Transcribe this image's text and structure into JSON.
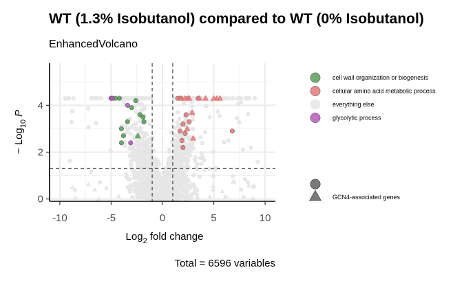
{
  "chart_data": {
    "type": "scatter",
    "title": "WT  (1.3% Isobutanol)  compared to WT (0% Isobutanol)",
    "subtitle": "EnhancedVolcano",
    "xlabel_main": "Log",
    "xlabel_sub": "2",
    "xlabel_rest": " fold change",
    "ylabel_prefix": "− Log",
    "ylabel_sub": "10",
    "ylabel_var": "P",
    "caption": "Total = 6596 variables",
    "xlim": [
      -11,
      11
    ],
    "ylim": [
      -0.1,
      5.8
    ],
    "x_ticks": [
      -10,
      -5,
      0,
      5,
      10
    ],
    "x_tick_labels": [
      "-10",
      "-5",
      "0",
      "5",
      "10"
    ],
    "y_ticks": [
      0,
      2,
      4
    ],
    "y_tick_labels": [
      "0",
      "2",
      "4"
    ],
    "fc_cutoff": 1,
    "p_cutoff_line": 1.3,
    "grid": true,
    "legend_position": "right",
    "legend": [
      {
        "key": "cellwall",
        "label": "cell wall organization or biogenesis",
        "color": "#5a9e5a"
      },
      {
        "key": "aminoacid",
        "label": "cellular amino acid metabolic process",
        "color": "#e07a7a"
      },
      {
        "key": "else",
        "label": "everything else",
        "color": "#e6e6e6"
      },
      {
        "key": "glyco",
        "label": "glycolytic process",
        "color": "#b45ab9"
      }
    ],
    "shape_legend": {
      "label": "GCN4-associated genes"
    },
    "series": [
      {
        "key": "cellwall",
        "shape": "circle",
        "x": [
          -4.9,
          -4.6,
          -4.2,
          -4.0,
          -3.8,
          -3.4,
          -3.0,
          -2.6,
          -2.2,
          -1.9,
          -1.8,
          -4.0
        ],
        "y": [
          4.3,
          4.3,
          4.3,
          3.0,
          2.7,
          3.3,
          3.9,
          4.2,
          3.6,
          3.5,
          3.3,
          2.4
        ]
      },
      {
        "key": "aminoacid",
        "shape": "circle",
        "x": [
          1.5,
          1.8,
          2.0,
          2.2,
          2.5,
          2.3,
          1.7,
          2.0,
          3.5,
          6.8,
          1.9,
          2.6
        ],
        "y": [
          4.3,
          4.3,
          3.2,
          2.8,
          4.3,
          3.6,
          2.9,
          2.2,
          4.3,
          2.9,
          2.5,
          3.3
        ]
      },
      {
        "key": "aminoacid",
        "shape": "triangle",
        "x": [
          1.8,
          2.2,
          2.6,
          3.6,
          4.2,
          5.0,
          5.3,
          5.6,
          2.9,
          3.0,
          2.4
        ],
        "y": [
          4.3,
          4.3,
          4.3,
          4.3,
          4.3,
          4.3,
          4.3,
          4.3,
          3.7,
          2.6,
          3.0
        ]
      },
      {
        "key": "glyco",
        "shape": "circle",
        "x": [
          -5.0,
          -4.9,
          -3.4,
          -3.1
        ],
        "y": [
          4.3,
          4.3,
          4.0,
          2.4
        ]
      },
      {
        "key": "cellwall",
        "shape": "triangle",
        "x": [
          -2.4
        ],
        "y": [
          2.7
        ]
      }
    ],
    "background_cloud": {
      "key": "else",
      "n": 1600,
      "total": 6596
    }
  }
}
